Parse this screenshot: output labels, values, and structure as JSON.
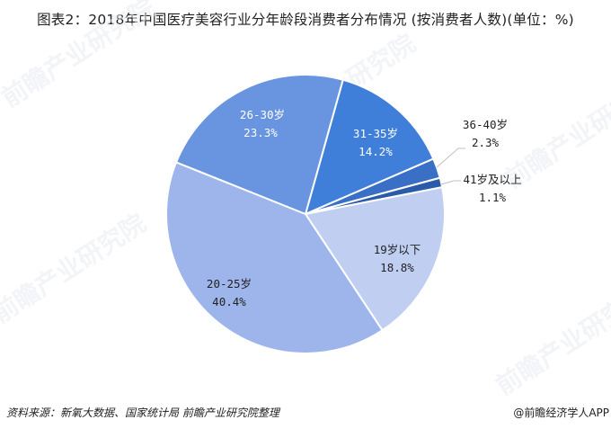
{
  "title": "图表2：2018年中国医疗美容行业分年龄段消费者分布情况 (按消费者人数)(单位：%)",
  "source": "资料来源：新氧大数据、国家统计局 前瞻产业研究院整理",
  "credit": "@前瞻经济学人APP",
  "watermark": "前瞻产业研究院",
  "chart_data": {
    "type": "pie",
    "title": "2018年中国医疗美容行业分年龄段消费者分布情况 (按消费者人数)(单位：%)",
    "start_angle_deg": 15.6,
    "direction": "clockwise",
    "categories": [
      "31-35岁",
      "36-40岁",
      "41岁及以上",
      "19岁以下",
      "20-25岁",
      "26-30岁"
    ],
    "values": [
      14.2,
      2.3,
      1.1,
      18.8,
      40.4,
      23.3
    ],
    "value_labels": [
      "14.2%",
      "2.3%",
      "1.1%",
      "18.8%",
      "40.4%",
      "23.3%"
    ],
    "colors": [
      "#3f7fd9",
      "#3a6fc6",
      "#2b5ba8",
      "#bfcef1",
      "#9db5eb",
      "#6994e0"
    ],
    "legend": "none (data labels on/near slices)"
  },
  "labels": {
    "a3135": {
      "name": "31-35岁",
      "value": "14.2%"
    },
    "a3640": {
      "name": "36-40岁",
      "value": "2.3%"
    },
    "a41": {
      "name": "41岁及以上",
      "value": "1.1%"
    },
    "a19": {
      "name": "19岁以下",
      "value": "18.8%"
    },
    "a2025": {
      "name": "20-25岁",
      "value": "40.4%"
    },
    "a2630": {
      "name": "26-30岁",
      "value": "23.3%"
    }
  }
}
